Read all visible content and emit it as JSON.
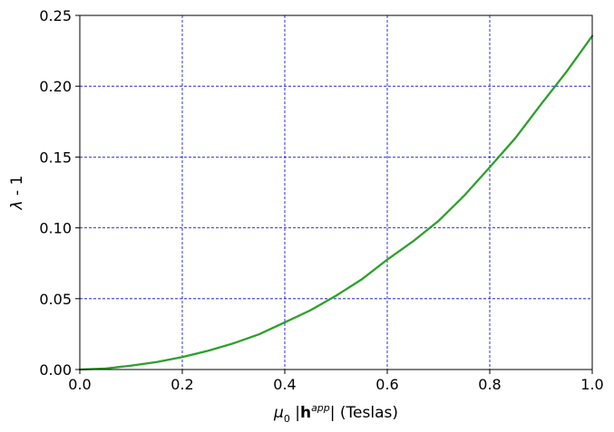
{
  "chart_data": {
    "type": "line",
    "xlabel_main": "μ",
    "xlabel_sub": "0",
    "xlabel_bar_left": " |",
    "xlabel_bold": "h",
    "xlabel_sup": "app",
    "xlabel_rest": "| (Teslas)",
    "ylabel_main": "λ",
    "ylabel_rest": " - 1",
    "xlim": [
      0.0,
      1.0
    ],
    "ylim": [
      0.0,
      0.25
    ],
    "xticks": [
      "0.0",
      "0.2",
      "0.4",
      "0.6",
      "0.8",
      "1.0"
    ],
    "yticks": [
      "0.00",
      "0.05",
      "0.10",
      "0.15",
      "0.20",
      "0.25"
    ],
    "grid": true,
    "grid_color": "#0000cc",
    "series": [
      {
        "color": "#2ca02c",
        "x": [
          0.0,
          0.05,
          0.1,
          0.15,
          0.2,
          0.25,
          0.3,
          0.35,
          0.4,
          0.45,
          0.5,
          0.55,
          0.6,
          0.65,
          0.7,
          0.75,
          0.8,
          0.85,
          0.9,
          0.95,
          1.0
        ],
        "y": [
          0.0,
          0.0007,
          0.0027,
          0.0053,
          0.0088,
          0.0132,
          0.0185,
          0.0249,
          0.0333,
          0.0418,
          0.0521,
          0.0636,
          0.0776,
          0.0904,
          0.1049,
          0.1227,
          0.1428,
          0.1634,
          0.1872,
          0.2103,
          0.2355
        ]
      }
    ]
  }
}
